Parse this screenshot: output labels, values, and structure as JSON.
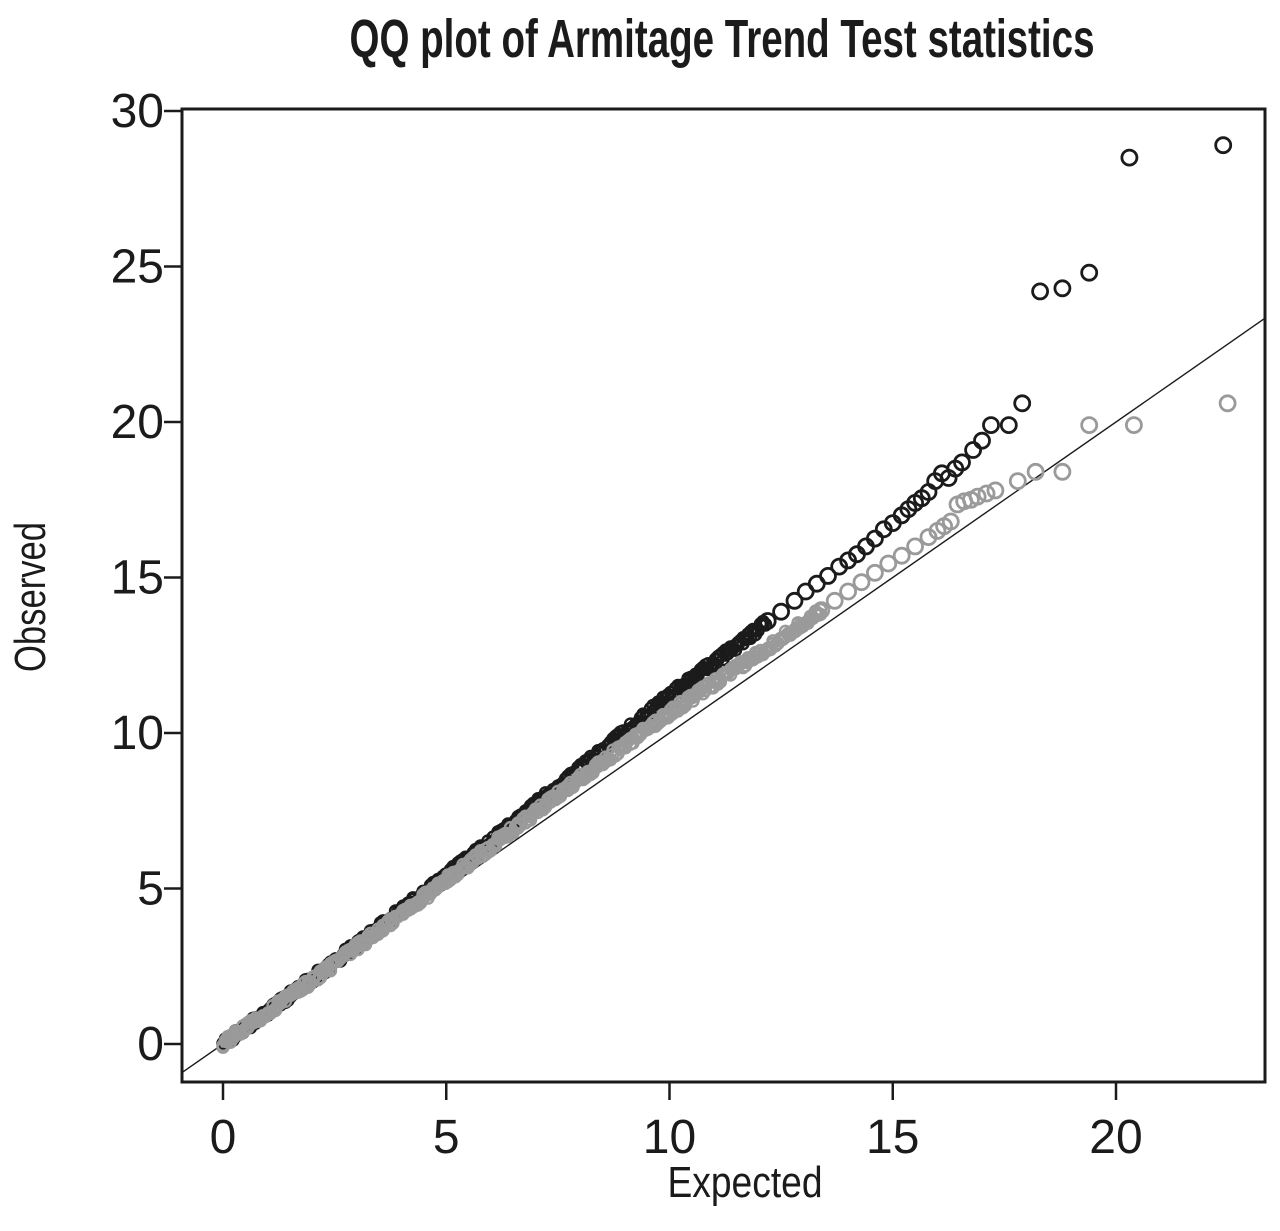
{
  "chart_data": {
    "type": "scatter",
    "subtype": "qq-plot",
    "title": "QQ plot of Armitage Trend Test statistics",
    "xlabel": "Expected",
    "ylabel": "Observed",
    "x_ticks": [
      0,
      5,
      10,
      15,
      20
    ],
    "y_ticks": [
      0,
      5,
      10,
      15,
      20,
      25,
      30
    ],
    "xlim": [
      -0.9,
      23.4
    ],
    "ylim": [
      -1.2,
      30.1
    ],
    "grid": false,
    "legend": "none",
    "background_color": "#ffffff",
    "axis_color": "#1b1b1b",
    "reference_line": {
      "slope": 1,
      "intercept": 0,
      "color": "#1b1b1b",
      "width": 1.4
    },
    "series": [
      {
        "name": "black-series",
        "marker": "open-circle",
        "color": "#1b1b1b",
        "band": {
          "description": "dense quantile band from origin, drifting above identity line",
          "e_start": 0,
          "e_end": 12.2,
          "half_width": 0.13,
          "anchors": [
            [
              0,
              0
            ],
            [
              2,
              2.1
            ],
            [
              4,
              4.3
            ],
            [
              6,
              6.55
            ],
            [
              8,
              8.85
            ],
            [
              10,
              11.2
            ],
            [
              12,
              13.35
            ],
            [
              12.2,
              13.6
            ]
          ]
        },
        "tail_points": [
          [
            12.2,
            13.6
          ],
          [
            12.5,
            13.9
          ],
          [
            12.8,
            14.25
          ],
          [
            13.05,
            14.55
          ],
          [
            13.3,
            14.8
          ],
          [
            13.55,
            15.05
          ],
          [
            13.8,
            15.35
          ],
          [
            14.0,
            15.55
          ],
          [
            14.2,
            15.75
          ],
          [
            14.4,
            16.0
          ],
          [
            14.6,
            16.25
          ],
          [
            14.8,
            16.55
          ],
          [
            15.0,
            16.75
          ],
          [
            15.2,
            17.0
          ],
          [
            15.35,
            17.2
          ],
          [
            15.5,
            17.4
          ],
          [
            15.65,
            17.55
          ],
          [
            15.8,
            17.75
          ],
          [
            15.95,
            18.1
          ],
          [
            16.1,
            18.35
          ],
          [
            16.25,
            18.2
          ],
          [
            16.4,
            18.5
          ],
          [
            16.55,
            18.7
          ],
          [
            16.8,
            19.1
          ],
          [
            17.0,
            19.4
          ],
          [
            17.2,
            19.9
          ],
          [
            17.6,
            19.9
          ],
          [
            17.9,
            20.6
          ],
          [
            18.3,
            24.2
          ],
          [
            18.8,
            24.3
          ],
          [
            19.4,
            24.8
          ],
          [
            20.3,
            28.5
          ],
          [
            22.4,
            28.9
          ]
        ]
      },
      {
        "name": "gray-series",
        "marker": "open-circle",
        "color": "#9a9a9a",
        "band": {
          "description": "dense quantile band hugging the identity line, slightly above it mid-range",
          "e_start": 0,
          "e_end": 13.4,
          "half_width": 0.13,
          "anchors": [
            [
              0,
              0
            ],
            [
              2,
              2.05
            ],
            [
              4,
              4.18
            ],
            [
              6,
              6.35
            ],
            [
              8,
              8.55
            ],
            [
              10,
              10.65
            ],
            [
              12,
              12.55
            ],
            [
              13.4,
              13.95
            ]
          ]
        },
        "tail_points": [
          [
            13.4,
            13.95
          ],
          [
            13.7,
            14.25
          ],
          [
            14.0,
            14.55
          ],
          [
            14.3,
            14.85
          ],
          [
            14.6,
            15.15
          ],
          [
            14.9,
            15.45
          ],
          [
            15.2,
            15.7
          ],
          [
            15.5,
            16.0
          ],
          [
            15.8,
            16.3
          ],
          [
            16.0,
            16.5
          ],
          [
            16.15,
            16.65
          ],
          [
            16.3,
            16.8
          ],
          [
            16.45,
            17.35
          ],
          [
            16.6,
            17.45
          ],
          [
            16.75,
            17.5
          ],
          [
            16.9,
            17.6
          ],
          [
            17.1,
            17.7
          ],
          [
            17.3,
            17.8
          ],
          [
            17.8,
            18.1
          ],
          [
            18.2,
            18.4
          ],
          [
            18.8,
            18.4
          ],
          [
            19.4,
            19.9
          ],
          [
            20.4,
            19.9
          ],
          [
            22.5,
            20.6
          ]
        ]
      }
    ]
  }
}
